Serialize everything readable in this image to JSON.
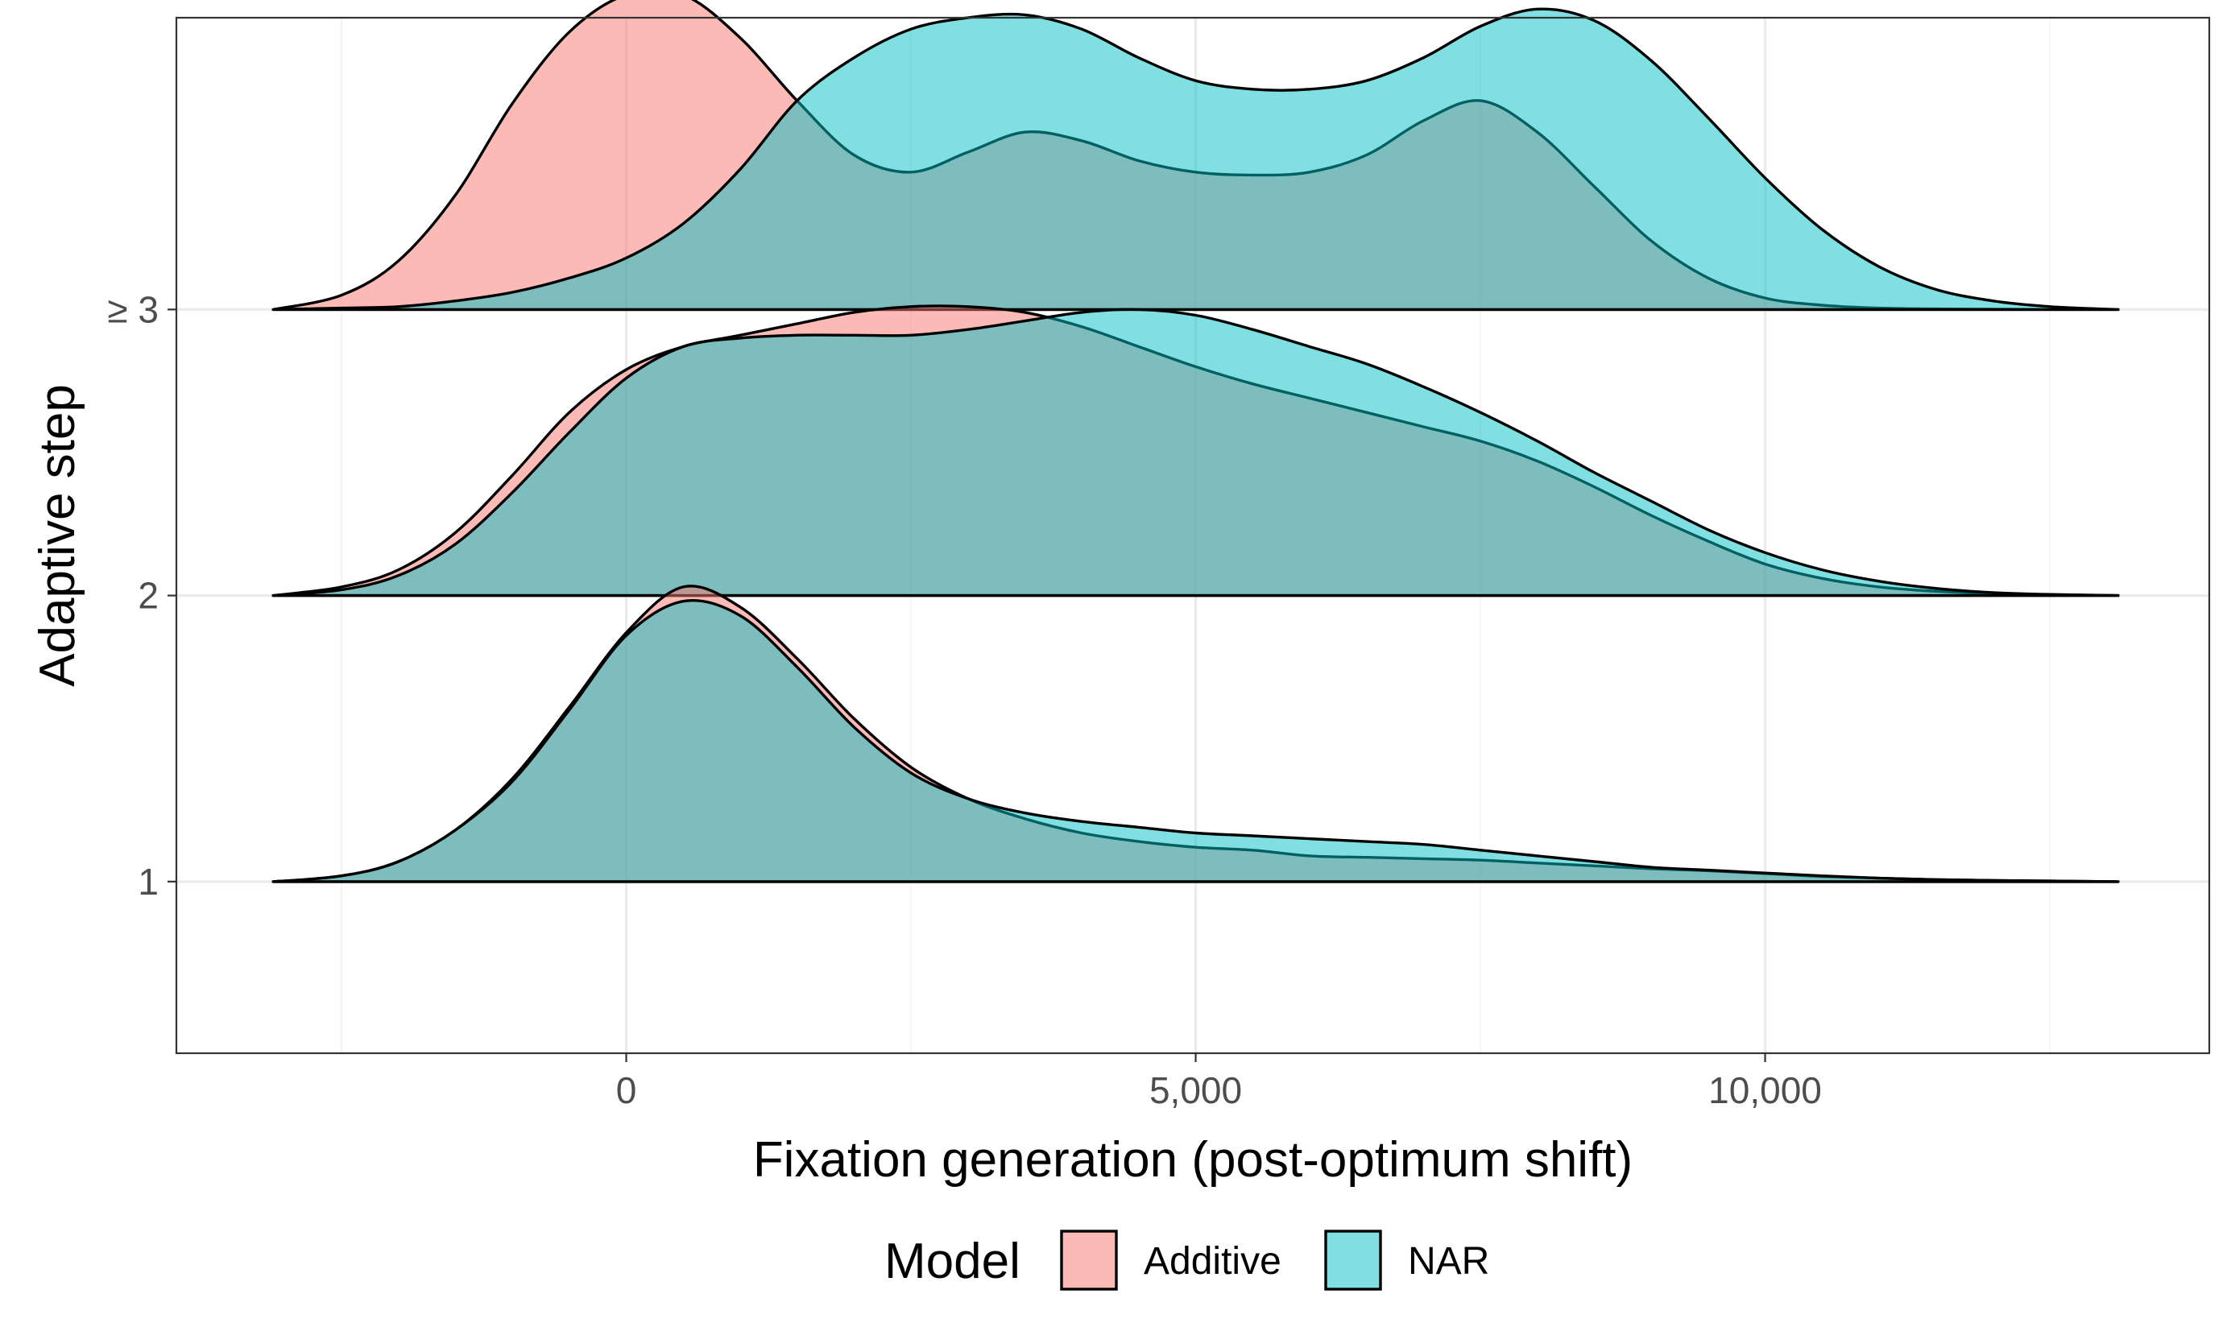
{
  "chart_data": {
    "type": "ridgeline",
    "xlabel": "Fixation generation (post-optimum shift)",
    "ylabel": "Adaptive step",
    "xlim": [
      -3950,
      13900
    ],
    "x_ticks": [
      0,
      5000,
      10000
    ],
    "x_tick_labels": [
      "0",
      "5,000",
      "10,000"
    ],
    "y_levels": [
      1,
      2,
      3
    ],
    "y_tick_labels": [
      "1",
      "2",
      "≥ 3"
    ],
    "ylim": [
      0.4,
      4.02
    ],
    "grid": true,
    "legend": {
      "title": "Model",
      "position": "bottom",
      "entries": [
        {
          "name": "Additive",
          "color": "#F8766D"
        },
        {
          "name": "NAR",
          "color": "#00BFC4"
        }
      ]
    },
    "fill_opacity": 0.5,
    "density_x": [
      -3100,
      -2500,
      -2000,
      -1500,
      -1000,
      -500,
      0,
      500,
      1000,
      1500,
      2000,
      2500,
      3000,
      3500,
      4000,
      4500,
      5000,
      5500,
      6000,
      6500,
      7000,
      7500,
      8000,
      8500,
      9000,
      9500,
      10000,
      10500,
      11000,
      11500,
      12000,
      12500,
      13100
    ],
    "series": [
      {
        "name": "Additive",
        "level": 1,
        "density": [
          0.0,
          0.02,
          0.07,
          0.18,
          0.36,
          0.61,
          0.87,
          1.03,
          0.96,
          0.78,
          0.57,
          0.4,
          0.29,
          0.22,
          0.17,
          0.14,
          0.12,
          0.11,
          0.09,
          0.085,
          0.08,
          0.075,
          0.065,
          0.055,
          0.045,
          0.038,
          0.028,
          0.018,
          0.012,
          0.007,
          0.004,
          0.002,
          0.0
        ]
      },
      {
        "name": "NAR",
        "level": 1,
        "density": [
          0.0,
          0.02,
          0.07,
          0.18,
          0.35,
          0.6,
          0.86,
          0.98,
          0.93,
          0.75,
          0.54,
          0.38,
          0.29,
          0.24,
          0.21,
          0.19,
          0.17,
          0.16,
          0.15,
          0.14,
          0.13,
          0.11,
          0.09,
          0.07,
          0.05,
          0.04,
          0.03,
          0.02,
          0.012,
          0.007,
          0.004,
          0.002,
          0.0
        ]
      },
      {
        "name": "Additive",
        "level": 2,
        "density": [
          0.0,
          0.03,
          0.09,
          0.22,
          0.42,
          0.64,
          0.79,
          0.87,
          0.91,
          0.95,
          0.99,
          1.01,
          1.01,
          0.99,
          0.94,
          0.87,
          0.8,
          0.74,
          0.69,
          0.64,
          0.59,
          0.54,
          0.47,
          0.38,
          0.28,
          0.19,
          0.11,
          0.06,
          0.03,
          0.015,
          0.007,
          0.003,
          0.0
        ]
      },
      {
        "name": "NAR",
        "level": 2,
        "density": [
          0.0,
          0.02,
          0.07,
          0.18,
          0.36,
          0.57,
          0.76,
          0.87,
          0.9,
          0.91,
          0.91,
          0.91,
          0.93,
          0.96,
          0.99,
          1.0,
          0.98,
          0.93,
          0.87,
          0.81,
          0.73,
          0.64,
          0.54,
          0.43,
          0.33,
          0.23,
          0.15,
          0.09,
          0.05,
          0.025,
          0.01,
          0.004,
          0.0
        ]
      },
      {
        "name": "Additive",
        "level": 3,
        "density": [
          0.0,
          0.05,
          0.17,
          0.4,
          0.72,
          0.97,
          1.1,
          1.1,
          0.95,
          0.73,
          0.54,
          0.48,
          0.55,
          0.62,
          0.59,
          0.52,
          0.48,
          0.47,
          0.48,
          0.54,
          0.66,
          0.73,
          0.62,
          0.43,
          0.24,
          0.11,
          0.04,
          0.015,
          0.005,
          0.002,
          0.001,
          0.0,
          0.0
        ]
      },
      {
        "name": "NAR",
        "level": 3,
        "density": [
          0.0,
          0.005,
          0.01,
          0.03,
          0.06,
          0.11,
          0.18,
          0.3,
          0.49,
          0.73,
          0.88,
          0.98,
          1.02,
          1.03,
          0.98,
          0.88,
          0.8,
          0.77,
          0.77,
          0.8,
          0.88,
          0.99,
          1.05,
          1.01,
          0.87,
          0.67,
          0.46,
          0.28,
          0.15,
          0.07,
          0.03,
          0.01,
          0.0
        ]
      }
    ]
  }
}
